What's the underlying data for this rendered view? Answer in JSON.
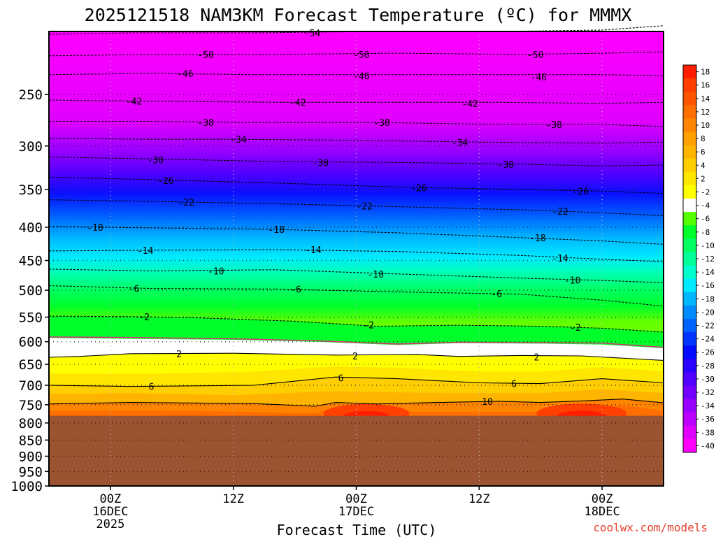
{
  "chart_data": {
    "type": "heatmap",
    "title": "2025121518 NAM3KM Forecast Temperature (ºC) for MMMX",
    "xlabel": "Forecast Time (UTC)",
    "ylabel": "",
    "credit": "coolwx.com/models",
    "x_range_hours": [
      -6,
      54
    ],
    "x_ticks": [
      {
        "h": 0,
        "line1": "00Z",
        "line2": "16DEC",
        "line3": "2025"
      },
      {
        "h": 12,
        "line1": "12Z",
        "line2": "",
        "line3": ""
      },
      {
        "h": 24,
        "line1": "00Z",
        "line2": "17DEC",
        "line3": ""
      },
      {
        "h": 36,
        "line1": "12Z",
        "line2": "",
        "line3": ""
      },
      {
        "h": 48,
        "line1": "00Z",
        "line2": "18DEC",
        "line3": ""
      }
    ],
    "y_range_hpa": [
      1000,
      200
    ],
    "y_ticks": [
      "250",
      "300",
      "350",
      "400",
      "450",
      "500",
      "550",
      "600",
      "650",
      "700",
      "750",
      "800",
      "850",
      "900",
      "950",
      "1000"
    ],
    "y_tick_values": [
      250,
      300,
      350,
      400,
      450,
      500,
      550,
      600,
      650,
      700,
      750,
      800,
      850,
      900,
      950,
      1000
    ],
    "grid": true,
    "surface_pressure_hpa": 780,
    "colorbar": {
      "labels": [
        "18",
        "16",
        "14",
        "12",
        "10",
        "8",
        "6",
        "4",
        "2",
        "-2",
        "-4",
        "-6",
        "-8",
        "-10",
        "-12",
        "-14",
        "-16",
        "-18",
        "-20",
        "-22",
        "-24",
        "-26",
        "-28",
        "-30",
        "-32",
        "-34",
        "-36",
        "-38",
        "-40"
      ],
      "colors": [
        "#ff1e00",
        "#ff4000",
        "#ff5500",
        "#ff6e00",
        "#ff8500",
        "#ff9f00",
        "#ffb400",
        "#ffce00",
        "#ffe600",
        "#ffff00",
        "#ffffff",
        "#55ff00",
        "#00ff2a",
        "#00ff60",
        "#00ff98",
        "#00ffcc",
        "#00eaff",
        "#00b7ff",
        "#008cff",
        "#0062ff",
        "#0034ff",
        "#000bff",
        "#2a00ff",
        "#5200ff",
        "#7300ff",
        "#9800ff",
        "#bd00ff",
        "#e000ff",
        "#ff00ff"
      ]
    },
    "isotherms": [
      {
        "t": -54,
        "p": [
          [
            -6,
            202
          ],
          [
            2,
            201
          ],
          [
            14,
            201
          ],
          [
            26,
            200
          ],
          [
            38,
            200
          ],
          [
            48,
            199
          ],
          [
            54,
            196
          ]
        ],
        "labels": [
          [
            19.7,
            201
          ]
        ]
      },
      {
        "t": -50,
        "p": [
          [
            -6,
            218
          ],
          [
            4,
            217
          ],
          [
            16,
            217
          ],
          [
            28,
            216
          ],
          [
            40,
            217
          ],
          [
            48,
            216
          ],
          [
            54,
            215
          ]
        ],
        "labels": [
          [
            9.3,
            217
          ],
          [
            24.5,
            217
          ],
          [
            41.5,
            217
          ]
        ]
      },
      {
        "t": -46,
        "p": [
          [
            -6,
            233
          ],
          [
            4,
            232
          ],
          [
            14,
            233
          ],
          [
            26,
            233
          ],
          [
            38,
            233
          ],
          [
            48,
            233
          ],
          [
            54,
            234
          ]
        ],
        "labels": [
          [
            7.3,
            232
          ],
          [
            24.5,
            234
          ],
          [
            41.8,
            235
          ]
        ]
      },
      {
        "t": -42,
        "p": [
          [
            -6,
            255
          ],
          [
            4,
            256
          ],
          [
            16,
            257
          ],
          [
            28,
            257
          ],
          [
            38,
            257
          ],
          [
            48,
            258
          ],
          [
            54,
            257
          ]
        ],
        "labels": [
          [
            2.3,
            256
          ],
          [
            18.3,
            257
          ],
          [
            35.1,
            258
          ]
        ]
      },
      {
        "t": -38,
        "p": [
          [
            -6,
            275
          ],
          [
            4,
            275
          ],
          [
            14,
            276
          ],
          [
            26,
            276
          ],
          [
            38,
            278
          ],
          [
            48,
            278
          ],
          [
            54,
            280
          ]
        ],
        "labels": [
          [
            9.3,
            276
          ],
          [
            26.5,
            276
          ],
          [
            43.3,
            278
          ]
        ]
      },
      {
        "t": -34,
        "p": [
          [
            -6,
            292
          ],
          [
            4,
            293
          ],
          [
            12,
            293
          ],
          [
            24,
            294
          ],
          [
            36,
            296
          ],
          [
            48,
            297
          ],
          [
            54,
            296
          ]
        ],
        "labels": [
          [
            12.5,
            293
          ],
          [
            34.1,
            296
          ]
        ]
      },
      {
        "t": -30,
        "p": [
          [
            -6,
            312
          ],
          [
            4,
            314
          ],
          [
            16,
            317
          ],
          [
            28,
            318
          ],
          [
            40,
            320
          ],
          [
            48,
            322
          ],
          [
            54,
            321
          ]
        ],
        "labels": [
          [
            4.4,
            315
          ],
          [
            20.5,
            318
          ],
          [
            38.6,
            320
          ]
        ]
      },
      {
        "t": -26,
        "p": [
          [
            -6,
            335
          ],
          [
            4,
            338
          ],
          [
            16,
            342
          ],
          [
            28,
            347
          ],
          [
            40,
            350
          ],
          [
            48,
            352
          ],
          [
            54,
            355
          ]
        ],
        "labels": [
          [
            5.4,
            339
          ],
          [
            30.1,
            348
          ],
          [
            45.9,
            352
          ]
        ]
      },
      {
        "t": -22,
        "p": [
          [
            -6,
            363
          ],
          [
            4,
            365
          ],
          [
            16,
            368
          ],
          [
            28,
            372
          ],
          [
            40,
            376
          ],
          [
            48,
            380
          ],
          [
            54,
            384
          ]
        ],
        "labels": [
          [
            7.4,
            366
          ],
          [
            24.8,
            371
          ],
          [
            43.9,
            378
          ]
        ]
      },
      {
        "t": -18,
        "p": [
          [
            -6,
            399
          ],
          [
            4,
            401
          ],
          [
            16,
            403
          ],
          [
            28,
            408
          ],
          [
            40,
            415
          ],
          [
            48,
            420
          ],
          [
            54,
            425
          ]
        ],
        "labels": [
          [
            -1.5,
            400
          ],
          [
            16.2,
            403
          ],
          [
            41.7,
            415
          ]
        ]
      },
      {
        "t": -14,
        "p": [
          [
            -6,
            435
          ],
          [
            4,
            434
          ],
          [
            16,
            433
          ],
          [
            28,
            436
          ],
          [
            40,
            442
          ],
          [
            48,
            448
          ],
          [
            54,
            452
          ]
        ],
        "labels": [
          [
            3.4,
            434
          ],
          [
            19.8,
            433
          ],
          [
            43.9,
            446
          ]
        ]
      },
      {
        "t": -10,
        "p": [
          [
            -6,
            464
          ],
          [
            4,
            467
          ],
          [
            16,
            465
          ],
          [
            28,
            472
          ],
          [
            40,
            479
          ],
          [
            48,
            483
          ],
          [
            54,
            487
          ]
        ],
        "labels": [
          [
            10.3,
            467
          ],
          [
            25.9,
            472
          ],
          [
            45.1,
            482
          ]
        ]
      },
      {
        "t": -6,
        "p": [
          [
            -6,
            492
          ],
          [
            4,
            497
          ],
          [
            16,
            498
          ],
          [
            28,
            503
          ],
          [
            40,
            507
          ],
          [
            48,
            518
          ],
          [
            54,
            529
          ]
        ],
        "labels": [
          [
            2.3,
            497
          ],
          [
            18.1,
            498
          ],
          [
            37.7,
            506
          ]
        ]
      },
      {
        "t": -2,
        "p": [
          [
            -6,
            548
          ],
          [
            2,
            549
          ],
          [
            8,
            551
          ],
          [
            18,
            558
          ],
          [
            26,
            568
          ],
          [
            34,
            566
          ],
          [
            42,
            568
          ],
          [
            48,
            572
          ],
          [
            54,
            580
          ]
        ],
        "labels": [
          [
            3.3,
            549
          ],
          [
            25.2,
            565
          ],
          [
            45.4,
            570
          ]
        ]
      },
      {
        "t": 2,
        "p": [
          [
            -6,
            634
          ],
          [
            -3,
            632
          ],
          [
            2,
            626
          ],
          [
            12,
            625
          ],
          [
            22,
            629
          ],
          [
            30,
            628
          ],
          [
            34,
            632
          ],
          [
            40,
            630
          ],
          [
            46,
            631
          ],
          [
            54,
            641
          ]
        ],
        "labels": [
          [
            6.7,
            626
          ],
          [
            23.9,
            631
          ],
          [
            41.6,
            633
          ]
        ]
      },
      {
        "t": 6,
        "p": [
          [
            -6,
            700
          ],
          [
            2,
            703
          ],
          [
            14,
            700
          ],
          [
            22,
            680
          ],
          [
            28,
            684
          ],
          [
            36,
            694
          ],
          [
            42,
            696
          ],
          [
            48,
            684
          ],
          [
            54,
            694
          ]
        ],
        "labels": [
          [
            4.0,
            703
          ],
          [
            22.5,
            682
          ],
          [
            39.4,
            696
          ]
        ]
      },
      {
        "t": 10,
        "p": [
          [
            -6,
            748
          ],
          [
            2,
            744
          ],
          [
            14,
            747
          ],
          [
            20,
            754
          ],
          [
            22,
            744
          ],
          [
            26,
            748
          ],
          [
            32,
            744
          ],
          [
            38,
            741
          ],
          [
            42,
            744
          ],
          [
            46,
            740
          ],
          [
            50,
            735
          ],
          [
            54,
            745
          ]
        ],
        "labels": [
          [
            36.8,
            741
          ]
        ]
      }
    ],
    "freezing_line_p": [
      [
        -6,
        590
      ],
      [
        2,
        591
      ],
      [
        12,
        594
      ],
      [
        20,
        598
      ],
      [
        28,
        605
      ],
      [
        34,
        601
      ],
      [
        42,
        602
      ],
      [
        48,
        603
      ],
      [
        54,
        612
      ]
    ],
    "bands": [
      {
        "p": [
          [
            -6,
            548
          ],
          [
            2,
            549
          ],
          [
            8,
            551
          ],
          [
            18,
            558
          ],
          [
            26,
            568
          ],
          [
            34,
            566
          ],
          [
            42,
            568
          ],
          [
            48,
            572
          ],
          [
            54,
            580
          ]
        ],
        "color": "#00ff2a"
      },
      {
        "p": [
          [
            -6,
            592
          ],
          [
            2,
            594
          ],
          [
            12,
            596
          ],
          [
            20,
            600
          ],
          [
            28,
            607
          ],
          [
            34,
            603
          ],
          [
            42,
            604
          ],
          [
            48,
            606
          ],
          [
            54,
            614
          ]
        ],
        "color": "#ffffff"
      },
      {
        "p": [
          [
            -6,
            634
          ],
          [
            -3,
            632
          ],
          [
            2,
            626
          ],
          [
            12,
            625
          ],
          [
            22,
            629
          ],
          [
            30,
            628
          ],
          [
            34,
            632
          ],
          [
            40,
            630
          ],
          [
            46,
            631
          ],
          [
            54,
            641
          ]
        ],
        "color": "#ffff00"
      },
      {
        "p": [
          [
            -6,
            672
          ],
          [
            4,
            672
          ],
          [
            14,
            667
          ],
          [
            22,
            655
          ],
          [
            28,
            658
          ],
          [
            36,
            667
          ],
          [
            42,
            667
          ],
          [
            48,
            657
          ],
          [
            54,
            666
          ]
        ],
        "color": "#ffe600"
      },
      {
        "p": [
          [
            -6,
            700
          ],
          [
            2,
            703
          ],
          [
            14,
            700
          ],
          [
            22,
            680
          ],
          [
            28,
            684
          ],
          [
            36,
            694
          ],
          [
            42,
            696
          ],
          [
            48,
            684
          ],
          [
            54,
            694
          ]
        ],
        "color": "#ffce00"
      },
      {
        "p": [
          [
            -6,
            722
          ],
          [
            2,
            720
          ],
          [
            12,
            725
          ],
          [
            22,
            715
          ],
          [
            28,
            718
          ],
          [
            36,
            720
          ],
          [
            42,
            720
          ],
          [
            48,
            710
          ],
          [
            54,
            720
          ]
        ],
        "color": "#ffb400"
      },
      {
        "p": [
          [
            -6,
            748
          ],
          [
            2,
            744
          ],
          [
            14,
            747
          ],
          [
            20,
            754
          ],
          [
            22,
            744
          ],
          [
            26,
            748
          ],
          [
            32,
            744
          ],
          [
            38,
            741
          ],
          [
            42,
            744
          ],
          [
            46,
            740
          ],
          [
            50,
            735
          ],
          [
            54,
            745
          ]
        ],
        "color": "#ff8500"
      },
      {
        "p": [
          [
            -6,
            766
          ],
          [
            4,
            765
          ],
          [
            14,
            770
          ],
          [
            20,
            772
          ],
          [
            22,
            756
          ],
          [
            26,
            758
          ],
          [
            30,
            770
          ],
          [
            36,
            770
          ],
          [
            42,
            770
          ],
          [
            46,
            758
          ],
          [
            50,
            752
          ],
          [
            54,
            766
          ]
        ],
        "color": "#ff6e00"
      }
    ]
  }
}
